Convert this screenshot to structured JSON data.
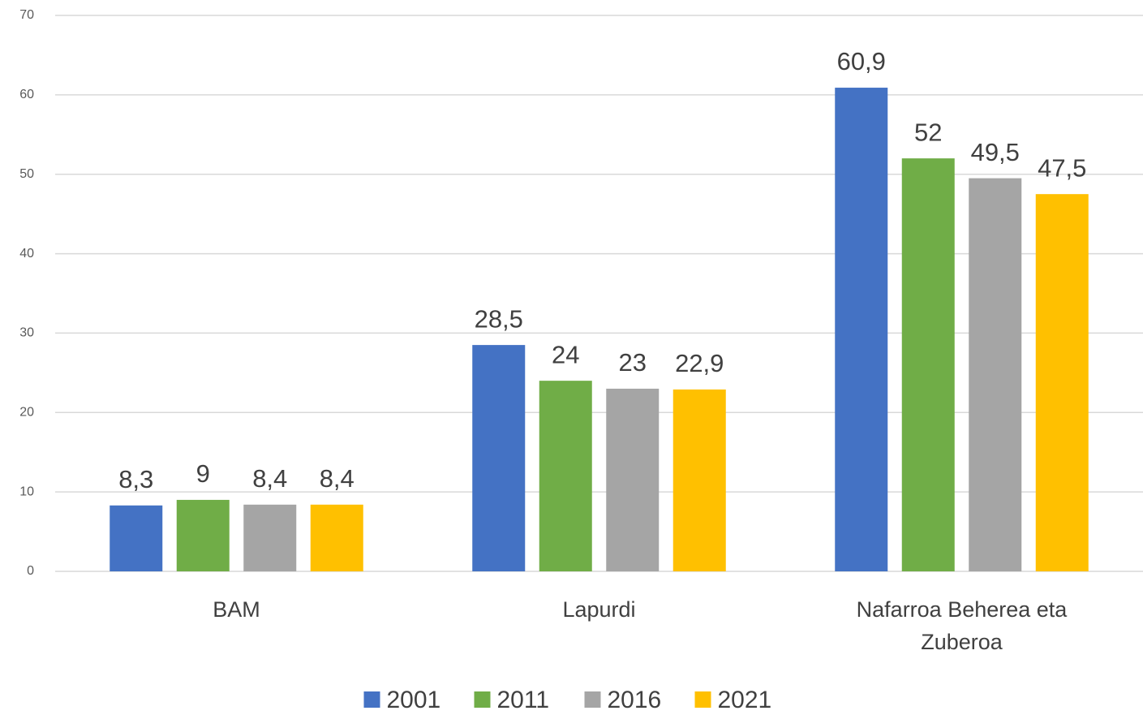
{
  "chart_data": {
    "type": "bar",
    "categories": [
      "BAM",
      "Lapurdi",
      "Nafarroa Beherea eta Zuberoa"
    ],
    "series": [
      {
        "name": "2001",
        "color": "#4472c4",
        "values": [
          8.3,
          28.5,
          60.9
        ],
        "value_labels": [
          "8,3",
          "28,5",
          "60,9"
        ]
      },
      {
        "name": "2011",
        "color": "#70ad47",
        "values": [
          9,
          24,
          52
        ],
        "value_labels": [
          "9",
          "24",
          "52"
        ]
      },
      {
        "name": "2016",
        "color": "#a5a5a5",
        "values": [
          8.4,
          23,
          49.5
        ],
        "value_labels": [
          "8,4",
          "23",
          "49,5"
        ]
      },
      {
        "name": "2021",
        "color": "#ffc000",
        "values": [
          8.4,
          22.9,
          47.5
        ],
        "value_labels": [
          "8,4",
          "22,9",
          "47,5"
        ]
      }
    ],
    "ylim": [
      0,
      70
    ],
    "yticks": [
      0,
      10,
      20,
      30,
      40,
      50,
      60,
      70
    ],
    "grid": true,
    "legend": "bottom"
  }
}
